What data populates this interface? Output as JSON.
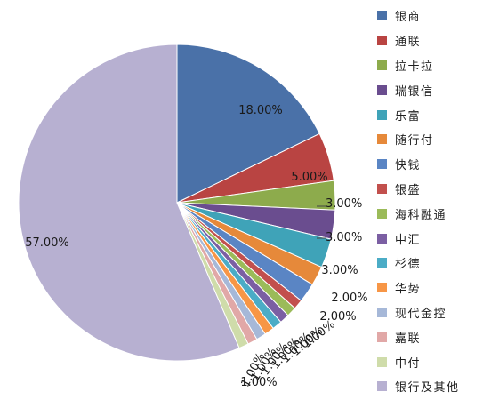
{
  "chart_data": {
    "type": "pie",
    "title": "",
    "slices": [
      {
        "name": "银商",
        "value": 18,
        "label": "18.00%",
        "color": "#4a71a8"
      },
      {
        "name": "通联",
        "value": 5,
        "label": "5.00%",
        "color": "#b94442"
      },
      {
        "name": "拉卡拉",
        "value": 3,
        "label": "3.00%",
        "color": "#8dab4c"
      },
      {
        "name": "瑞银信",
        "value": 3,
        "label": "3.00%",
        "color": "#6a4d8f"
      },
      {
        "name": "乐富",
        "value": 3,
        "label": "3.00%",
        "color": "#3fa3b8"
      },
      {
        "name": "随行付",
        "value": 2,
        "label": "2.00%",
        "color": "#e6893a"
      },
      {
        "name": "快钱",
        "value": 2,
        "label": "2.00%",
        "color": "#5a85c4"
      },
      {
        "name": "银盛",
        "value": 1,
        "label": "1.00%",
        "color": "#c2504d"
      },
      {
        "name": "海科融通",
        "value": 1,
        "label": "1.00%",
        "color": "#9bbb59"
      },
      {
        "name": "中汇",
        "value": 1,
        "label": "1.00%",
        "color": "#7b5fa3"
      },
      {
        "name": "杉德",
        "value": 1,
        "label": "1.00%",
        "color": "#4bacc6"
      },
      {
        "name": "华势",
        "value": 1,
        "label": "1.00%",
        "color": "#f79646"
      },
      {
        "name": "现代金控",
        "value": 1,
        "label": "1.00%",
        "color": "#a6b8d8"
      },
      {
        "name": "嘉联",
        "value": 1,
        "label": "1.00%",
        "color": "#e1a8a7"
      },
      {
        "name": "中付",
        "value": 1,
        "label": "1.00%",
        "color": "#cfdcaa"
      },
      {
        "name": "银行及其他",
        "value": 57,
        "label": "57.00%",
        "color": "#b7b0d1"
      }
    ],
    "legend": "right",
    "start": "12 o'clock",
    "direction": "clockwise"
  }
}
